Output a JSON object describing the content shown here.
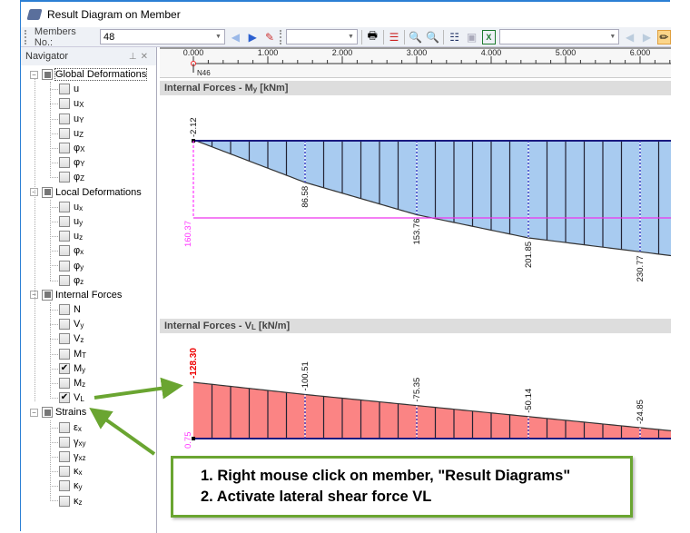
{
  "window": {
    "title": "Result Diagram on Member"
  },
  "toolbar": {
    "members_label": "Members No.:",
    "members_value": "48",
    "combo2_value": "",
    "combo3_value": ""
  },
  "navigator": {
    "title": "Navigator",
    "groups": [
      {
        "label": "Global Deformations",
        "items": [
          {
            "l": "u",
            "s": "",
            "c": false
          },
          {
            "l": "u",
            "s": "X",
            "c": false
          },
          {
            "l": "u",
            "s": "Y",
            "c": false
          },
          {
            "l": "u",
            "s": "Z",
            "c": false
          },
          {
            "l": "φ",
            "s": "X",
            "c": false
          },
          {
            "l": "φ",
            "s": "Y",
            "c": false
          },
          {
            "l": "φ",
            "s": "Z",
            "c": false
          }
        ]
      },
      {
        "label": "Local Deformations",
        "items": [
          {
            "l": "u",
            "s": "x",
            "c": false
          },
          {
            "l": "u",
            "s": "y",
            "c": false
          },
          {
            "l": "u",
            "s": "z",
            "c": false
          },
          {
            "l": "φ",
            "s": "x",
            "c": false
          },
          {
            "l": "φ",
            "s": "y",
            "c": false
          },
          {
            "l": "φ",
            "s": "z",
            "c": false
          }
        ]
      },
      {
        "label": "Internal Forces",
        "items": [
          {
            "l": "N",
            "s": "",
            "c": false
          },
          {
            "l": "V",
            "s": "y",
            "c": false
          },
          {
            "l": "V",
            "s": "z",
            "c": false
          },
          {
            "l": "M",
            "s": "T",
            "c": false
          },
          {
            "l": "M",
            "s": "y",
            "c": true
          },
          {
            "l": "M",
            "s": "z",
            "c": false
          },
          {
            "l": "V",
            "s": "L",
            "c": true
          }
        ]
      },
      {
        "label": "Strains",
        "items": [
          {
            "l": "ε",
            "s": "x",
            "c": false
          },
          {
            "l": "γ",
            "s": "xy",
            "c": false
          },
          {
            "l": "γ",
            "s": "xz",
            "c": false
          },
          {
            "l": "κ",
            "s": "x",
            "c": false
          },
          {
            "l": "κ",
            "s": "y",
            "c": false
          },
          {
            "l": "κ",
            "s": "z",
            "c": false
          }
        ]
      }
    ]
  },
  "ruler": {
    "ticks": [
      "0.000",
      "1.000",
      "2.000",
      "3.000",
      "4.000",
      "5.000",
      "6.000"
    ],
    "node_label": "N46"
  },
  "diagrams": [
    {
      "title_pre": "Internal Forces - M",
      "title_sub": "y",
      "title_post": " [kNm]",
      "fill": "#a8cbf0",
      "x": [
        0,
        1.5,
        3,
        4.5,
        6
      ],
      "values": [
        -2.12,
        86.58,
        153.76,
        201.85,
        230.77
      ],
      "labels": [
        "-2.12",
        "86.58",
        "153.76",
        "201.85",
        "230.77"
      ],
      "extreme_label": "160.37",
      "extreme_value": 160.37
    },
    {
      "title_pre": "Internal Forces - V",
      "title_sub": "L",
      "title_post": " [kN/m]",
      "fill": "#fb8484",
      "x": [
        0,
        1.5,
        3,
        4.5,
        6
      ],
      "values": [
        -128.3,
        -100.51,
        -75.35,
        -50.14,
        -24.85
      ],
      "labels": [
        "-128.30",
        "-100.51",
        "-75.35",
        "-50.14",
        "-24.85"
      ],
      "extreme_label": "0.75"
    }
  ],
  "callout": {
    "line1": "1. Right mouse click on member, \"Result Diagrams\"",
    "line2": "2. Activate lateral shear force VL",
    "border_color": "#6aa531"
  }
}
